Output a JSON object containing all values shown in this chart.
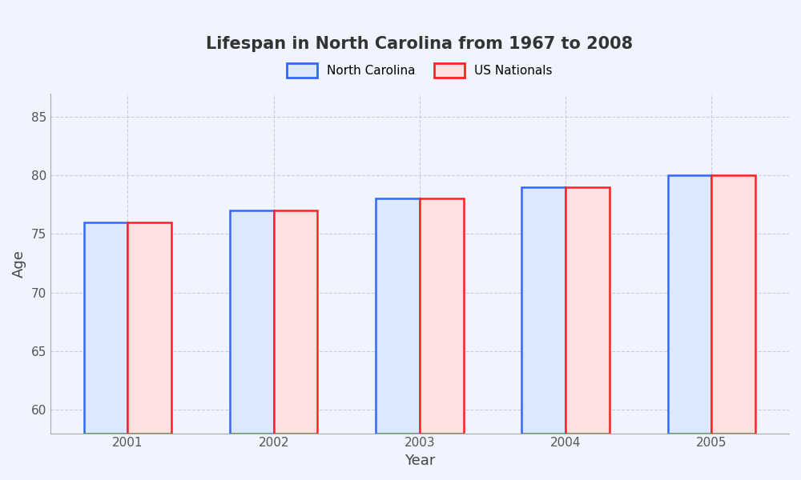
{
  "title": "Lifespan in North Carolina from 1967 to 2008",
  "xlabel": "Year",
  "ylabel": "Age",
  "years": [
    2001,
    2002,
    2003,
    2004,
    2005
  ],
  "nc_values": [
    76,
    77,
    78,
    79,
    80
  ],
  "us_values": [
    76,
    77,
    78,
    79,
    80
  ],
  "ylim": [
    58,
    87
  ],
  "yticks": [
    60,
    65,
    70,
    75,
    80,
    85
  ],
  "bar_width": 0.3,
  "nc_face_color": "#dce8ff",
  "nc_edge_color": "#3366ff",
  "us_face_color": "#ffe0e0",
  "us_edge_color": "#ff2222",
  "background_color": "#f0f4ff",
  "grid_color": "#ccccdd",
  "title_fontsize": 15,
  "axis_label_fontsize": 13,
  "tick_fontsize": 11,
  "legend_fontsize": 11
}
